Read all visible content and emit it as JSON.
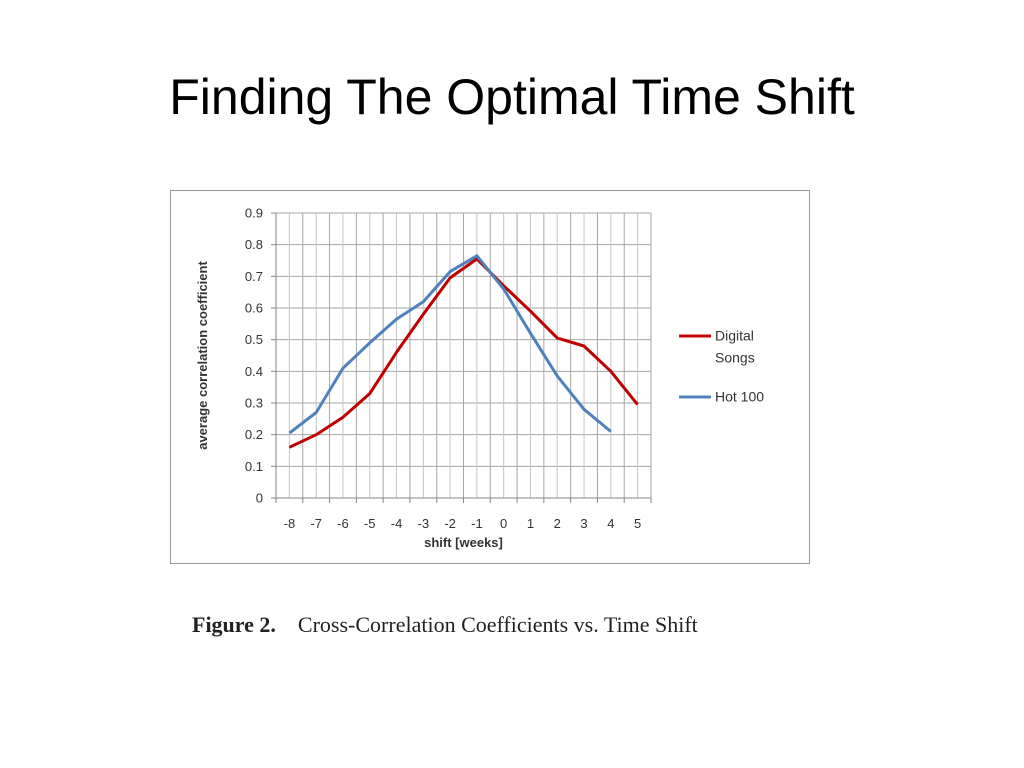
{
  "slide": {
    "title": "Finding The Optimal Time Shift"
  },
  "caption": {
    "label": "Figure 2.",
    "text": "Cross-Correlation Coefficients vs. Time Shift"
  },
  "chart_data": {
    "type": "line",
    "x": [
      -8,
      -7,
      -6,
      -5,
      -4,
      -3,
      -2,
      -1,
      0,
      1,
      2,
      3,
      4,
      5
    ],
    "xlabel": "shift [weeks]",
    "ylabel": "average correlation coefficient",
    "ylim": [
      0,
      0.9
    ],
    "yticks": [
      0,
      0.1,
      0.2,
      0.3,
      0.4,
      0.5,
      0.6,
      0.7,
      0.8,
      0.9
    ],
    "grid": true,
    "legend": "right",
    "series": [
      {
        "name": "Digital Songs",
        "color": "#c00000",
        "values": [
          0.16,
          0.2,
          0.255,
          0.33,
          0.46,
          0.58,
          0.695,
          0.755,
          0.67,
          0.59,
          0.505,
          0.48,
          0.4,
          0.295
        ]
      },
      {
        "name": "Hot 100",
        "color": "#4f81bd",
        "values": [
          0.205,
          0.27,
          0.41,
          0.49,
          0.565,
          0.62,
          0.715,
          0.765,
          0.66,
          0.52,
          0.385,
          0.28,
          0.21,
          null
        ]
      }
    ]
  }
}
